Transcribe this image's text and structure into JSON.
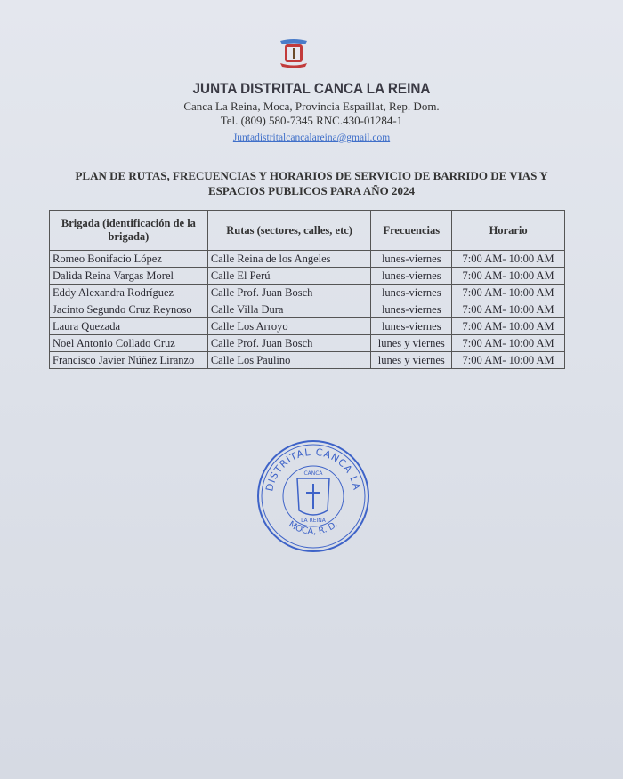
{
  "header": {
    "org": "JUNTA DISTRITAL CANCA LA REINA",
    "address": "Canca La Reina, Moca, Provincia Espaillat, Rep. Dom.",
    "contact": "Tel. (809) 580-7345 RNC.430-01284-1",
    "email": "Juntadistritalcancalareina@gmail.com"
  },
  "plan": {
    "line1": "PLAN DE RUTAS, FRECUENCIAS Y HORARIOS DE SERVICIO DE BARRIDO DE VIAS Y",
    "line2": "ESPACIOS PUBLICOS PARA AÑO 2024"
  },
  "table": {
    "headers": [
      "Brigada (identificación  de la brigada)",
      "Rutas (sectores, calles, etc)",
      "Frecuencias",
      "Horario"
    ],
    "rows": [
      [
        "Romeo Bonifacio López",
        "Calle Reina de los Angeles",
        "lunes-viernes",
        "7:00 AM- 10:00 AM"
      ],
      [
        "Dalida Reina Vargas Morel",
        "Calle El Perú",
        "lunes-viernes",
        "7:00 AM- 10:00 AM"
      ],
      [
        "Eddy Alexandra Rodríguez",
        "Calle Prof. Juan Bosch",
        "lunes-viernes",
        "7:00 AM- 10:00 AM"
      ],
      [
        "Jacinto Segundo Cruz Reynoso",
        "Calle Villa Dura",
        "lunes-viernes",
        "7:00 AM- 10:00 AM"
      ],
      [
        "Laura Quezada",
        "Calle Los Arroyo",
        "lunes-viernes",
        "7:00 AM- 10:00 AM"
      ],
      [
        "Noel Antonio Collado Cruz",
        "Calle Prof. Juan Bosch",
        "lunes y viernes",
        "7:00 AM- 10:00 AM"
      ],
      [
        "Francisco Javier Núñez Liranzo",
        "Calle Los Paulino",
        "lunes y viernes",
        "7:00 AM- 10:00 AM"
      ]
    ]
  },
  "stamp": {
    "ring": "JUNTA DISTRITAL CANCA LA REINA",
    "bottom": "MOCA, R. D.",
    "inner_top": "CANCA",
    "inner_bottom": "LA REINA",
    "color": "#3e63c8"
  }
}
